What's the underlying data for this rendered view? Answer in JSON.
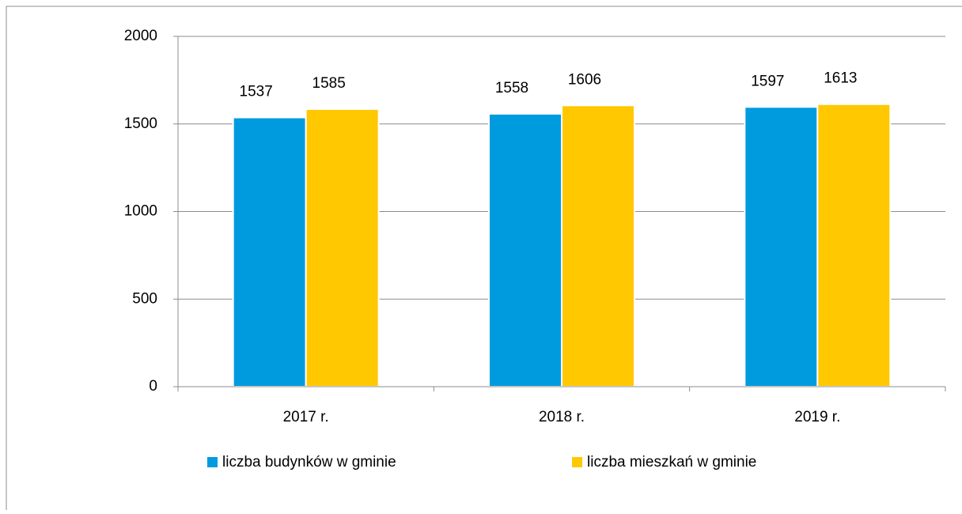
{
  "chart_data": {
    "type": "bar",
    "categories": [
      "2017 r.",
      "2018 r.",
      "2019 r."
    ],
    "series": [
      {
        "name": "liczba budynków w gminie",
        "color": "#009bde",
        "values": [
          1537,
          1558,
          1597
        ]
      },
      {
        "name": "liczba mieszkań w gminie",
        "color": "#ffc800",
        "values": [
          1585,
          1606,
          1613
        ]
      }
    ],
    "ylim": [
      0,
      2000
    ],
    "yticks": [
      0,
      500,
      1000,
      1500,
      2000
    ],
    "grid": true,
    "legend": "bottom"
  }
}
